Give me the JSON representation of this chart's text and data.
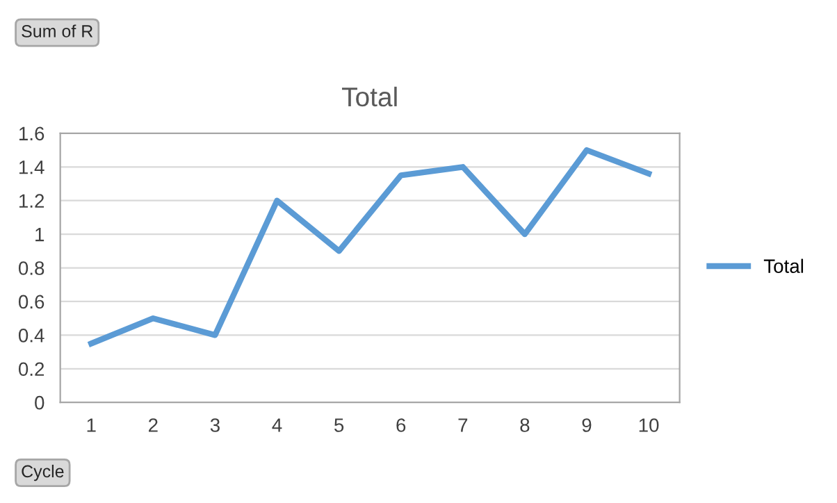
{
  "chart_data": {
    "type": "line",
    "title": "Total",
    "categories": [
      "1",
      "2",
      "3",
      "4",
      "5",
      "6",
      "7",
      "8",
      "9",
      "10"
    ],
    "series": [
      {
        "name": "Total",
        "color": "#5b9bd5",
        "values": [
          0.35,
          0.5,
          0.4,
          1.2,
          0.9,
          1.35,
          1.4,
          1.0,
          1.5,
          1.36
        ]
      }
    ],
    "ylim": [
      0,
      1.6
    ],
    "yticks": [
      0,
      0.2,
      0.4,
      0.6,
      0.8,
      {
        "value": 1,
        "label": "1"
      },
      1.2,
      1.4,
      1.6
    ],
    "grid": "y",
    "legend": "right",
    "marker": "none",
    "line_style": "solid",
    "annotations": [
      "Sum of R",
      "Cycle"
    ]
  }
}
